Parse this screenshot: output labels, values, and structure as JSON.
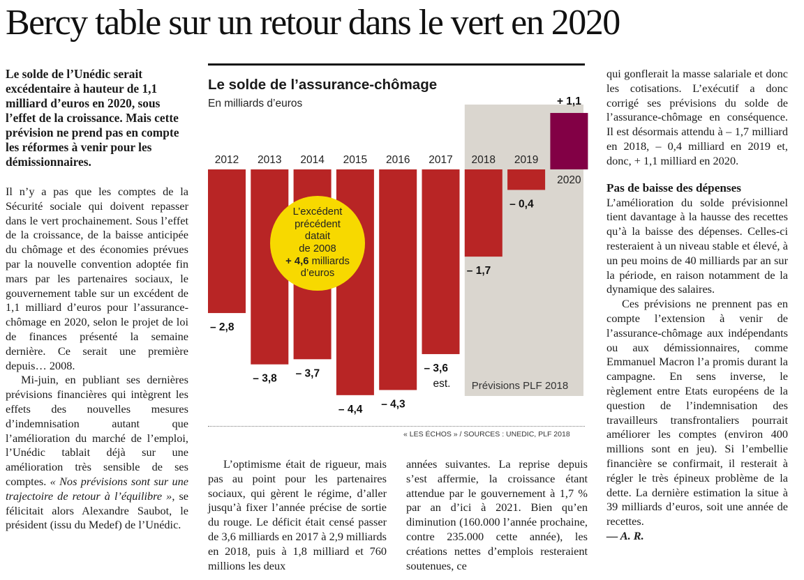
{
  "headline": "Bercy table sur un retour dans le vert en 2020",
  "chapo": "Le solde de l’Unédic serait excédentaire à hauteur de 1,1 milliard d’euros en 2020, sous l’effet de la croissance. Mais cette prévision ne prend pas en compte les réformes à venir pour les démissionnaires.",
  "left_paragraphs": [
    "Il n’y a pas que les comptes de la Sécurité sociale qui doivent repasser dans le vert prochainement. Sous l’effet de la croissance, de la baisse anticipée du chômage et des économies prévues par la nouvelle convention adoptée fin mars par les partenaires sociaux, le gouvernement table sur un excédent de 1,1 milliard d’euros pour l’assurance-chômage en 2020, selon le projet de loi de finances présenté la semaine dernière. Ce serait une première depuis… 2008."
  ],
  "left_p2": {
    "before": "Mi-juin, en publiant ses dernières prévisions financières qui intègrent les effets des nouvelles mesures d’indemnisation autant que l’amélioration du marché de l’emploi, l’Unédic tablait déjà sur une amélioration très sensible de ses comptes. ",
    "quote": "« Nos prévisions sont sur une trajectoire de retour à l’équilibre »",
    "after": ", se félicitait alors Alexandre Saubot, le président (issu du Medef) de l’Unédic."
  },
  "mid1_paragraph": "L’optimisme était de rigueur, mais pas au point pour les partenaires sociaux, qui gèrent le régime, d’aller jusqu’à fixer l’année précise de sortie du rouge. Le déficit était censé passer de 3,6 milliards en 2017 à 2,9 milliards en 2018, puis à 1,8 milliard et 760 millions les deux",
  "mid2_paragraph": "années suivantes. La reprise depuis s’est affermie, la croissance étant attendue par le gouvernement à 1,7 % par an d’ici à 2021. Bien qu’en diminution (160.000 l’année prochaine, contre 235.000 cette année), les créations nettes d’emplois resteraient soutenues, ce",
  "right_p1": "qui gonflerait la masse salariale et donc les cotisations. L’exécutif a donc corrigé ses prévisions du solde de l’assurance-chômage en conséquence. Il est désormais attendu à – 1,7 milliard en 2018, – 0,4 milliard en 2019 et, donc, + 1,1 milliard en 2020.",
  "right_subhead": "Pas de baisse des dépenses",
  "right_p2": "L’amélioration du solde prévisionnel tient davantage à la hausse des recettes qu’à la baisse des dépenses. Celles-ci resteraient à un niveau stable et élevé, à un peu moins de 40 milliards par an sur la période, en raison notamment de la dynamique des salaires.",
  "right_p3": "Ces prévisions ne prennent pas en compte l’extension à venir de l’assurance-chômage aux indépendants ou aux démissionnaires, comme Emmanuel Macron l’a promis durant la campagne. En sens inverse, le règlement entre Etats européens de la question de l’indemnisation des travailleurs transfrontaliers pourrait améliorer les comptes (environ 400 millions sont en jeu). Si l’embellie financière se confirmait, il resterait à régler le très épineux problème de la dette. La dernière estimation la situe à 39 milliards d’euros, soit une année de recettes.",
  "signature": "— A. R.",
  "chart": {
    "title": "Le solde de l’assurance-chômage",
    "subtitle": "En milliards d’euros",
    "forecast_label": "Prévisions PLF 2018",
    "source": "« LES ÉCHOS » / SOURCES : UNEDIC, PLF 2018",
    "bubble_lines": [
      "L’excédent",
      "précédent",
      "datait",
      "de 2008"
    ],
    "bubble_bold": "+ 4,6",
    "bubble_rest": " milliards",
    "bubble_last": "d’euros",
    "colors": {
      "negative": "#b82525",
      "positive": "#820045",
      "forecast_bg": "#dad6cf",
      "bubble": "#f7d900"
    }
  },
  "chart_data": {
    "type": "bar",
    "title": "Le solde de l’assurance-chômage",
    "ylabel": "En milliards d’euros",
    "categories": [
      "2012",
      "2013",
      "2014",
      "2015",
      "2016",
      "2017",
      "2018",
      "2019",
      "2020"
    ],
    "values": [
      -2.8,
      -3.8,
      -3.7,
      -4.4,
      -4.3,
      -3.6,
      -1.7,
      -0.4,
      1.1
    ],
    "value_labels": [
      "– 2,8",
      "– 3,8",
      "– 3,7",
      "– 4,4",
      "– 4,3",
      "– 3,6",
      "– 1,7",
      "– 0,4",
      "+ 1,1"
    ],
    "estimate_note": {
      "category": "2017",
      "label": "est."
    },
    "forecast_categories": [
      "2018",
      "2019",
      "2020"
    ],
    "ylim": [
      -4.4,
      1.1
    ]
  }
}
